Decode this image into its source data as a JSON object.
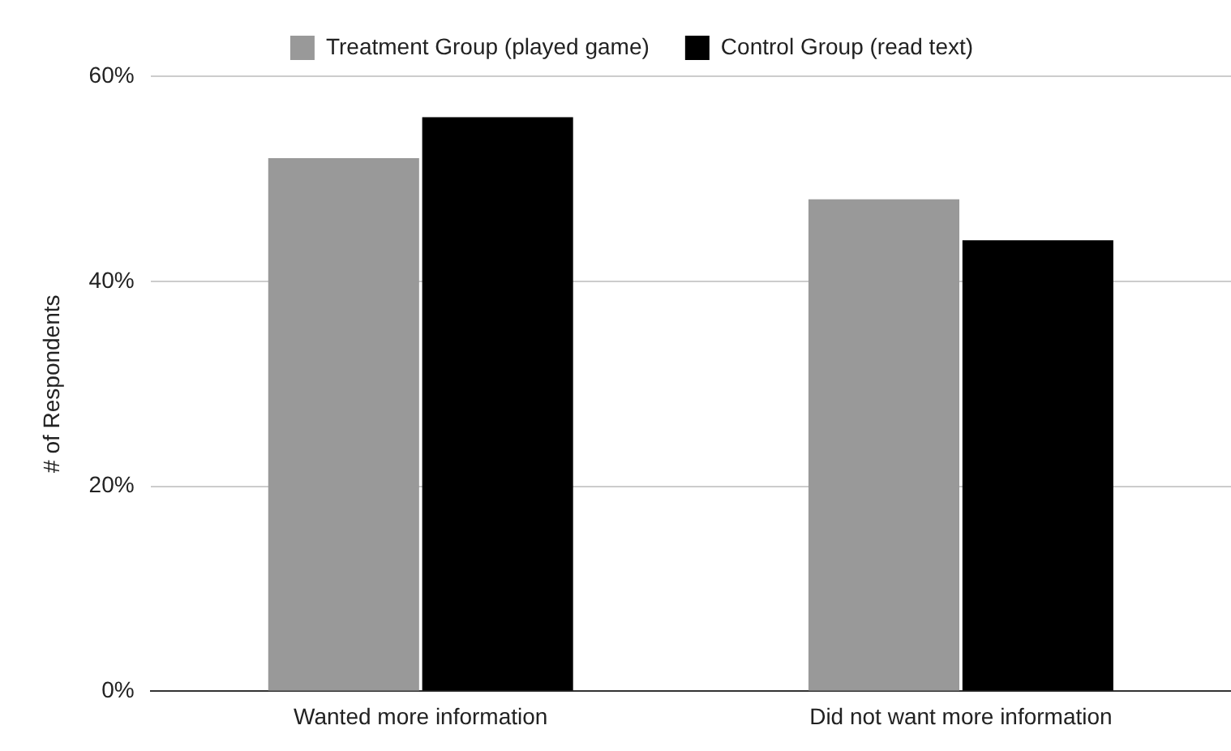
{
  "chart_data": {
    "type": "bar",
    "ylabel": "# of Respondents",
    "categories": [
      "Wanted more information",
      "Did not want more information"
    ],
    "series": [
      {
        "name": "Treatment Group (played game)",
        "color": "#999999",
        "values": [
          52,
          48
        ]
      },
      {
        "name": "Control Group (read text)",
        "color": "#000000",
        "values": [
          56,
          44
        ]
      }
    ],
    "ylim": [
      0,
      60
    ],
    "yticks": [
      {
        "value": 0,
        "label": "0%"
      },
      {
        "value": 20,
        "label": "20%"
      },
      {
        "value": 40,
        "label": "40%"
      },
      {
        "value": 60,
        "label": "60%"
      }
    ],
    "grid": "y",
    "legend": "top"
  }
}
